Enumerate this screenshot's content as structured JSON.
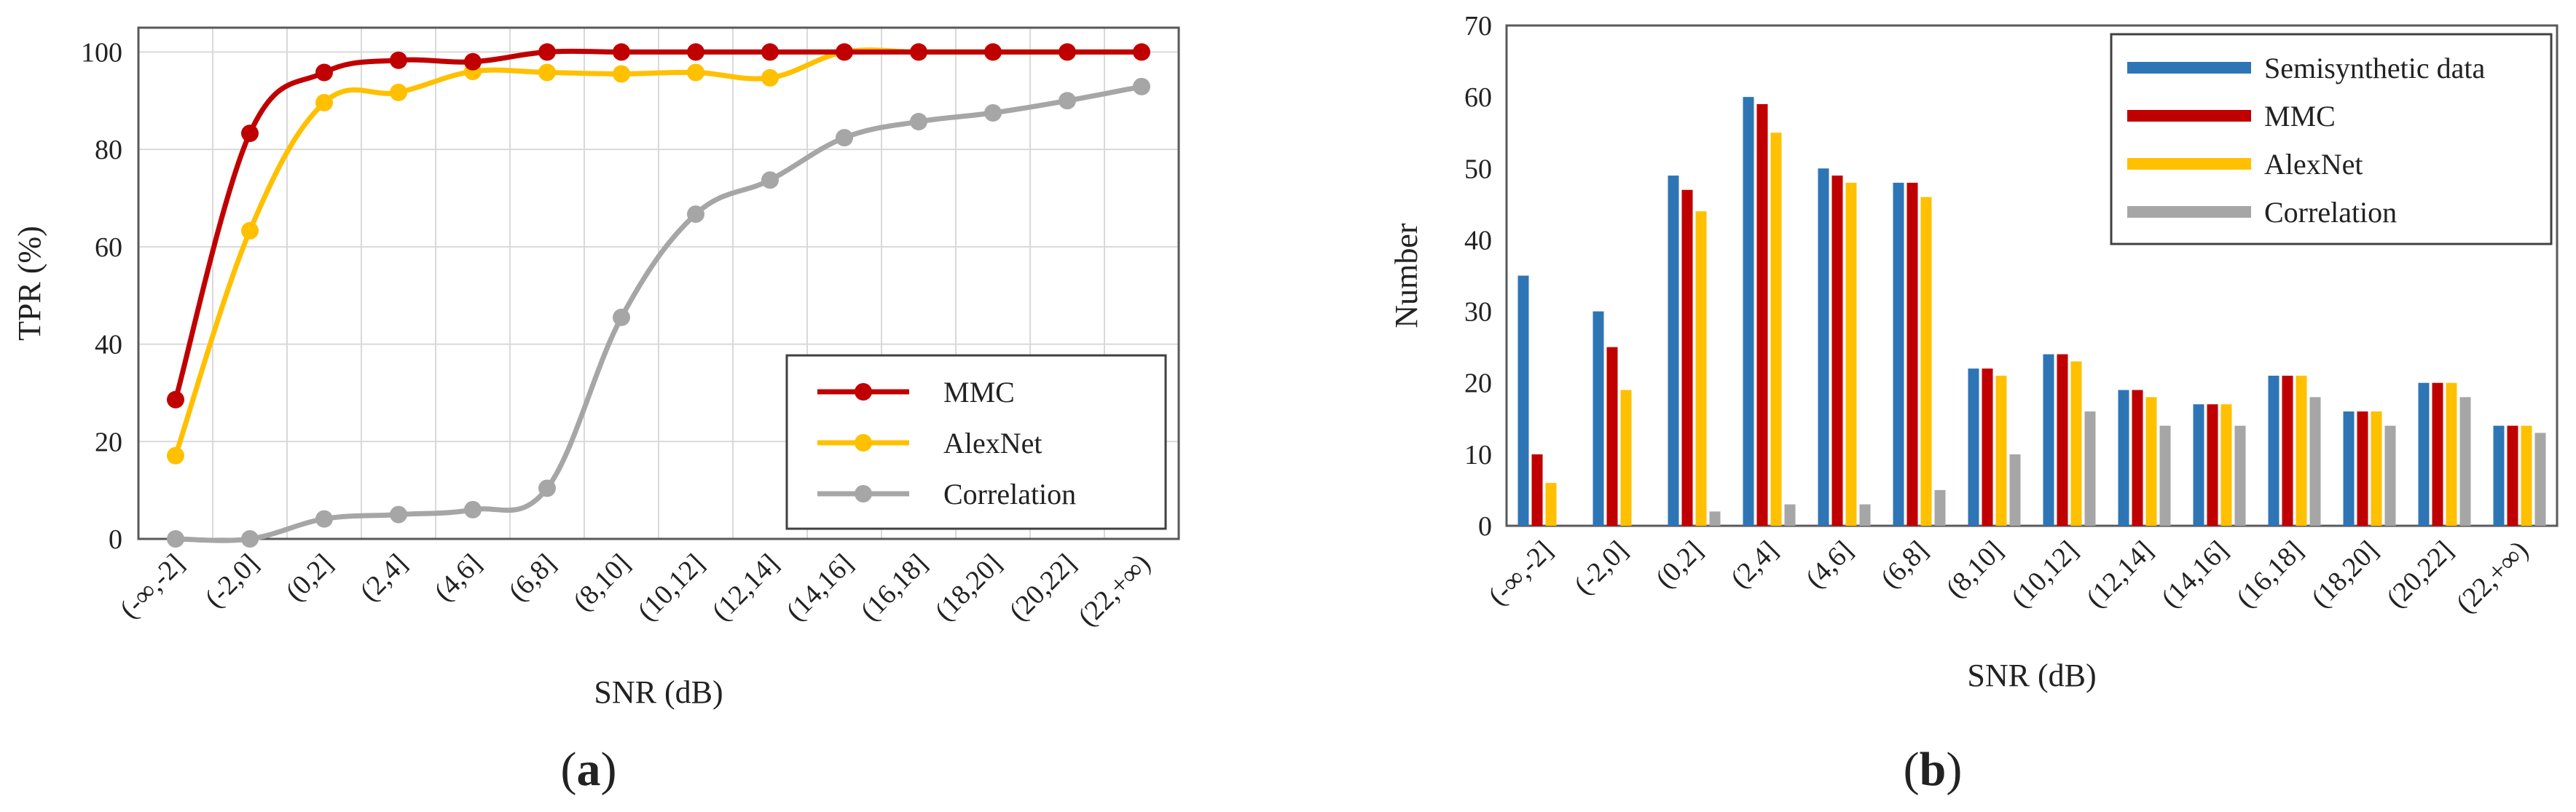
{
  "chart_data": [
    {
      "type": "line",
      "panel_label": "(a)",
      "panel_letter": "a",
      "categories": [
        "(-∞,-2]",
        "(-2,0]",
        "(0,2]",
        "(2,4]",
        "(4,6]",
        "(6,8]",
        "(8,10]",
        "(10,12]",
        "(12,14]",
        "(14,16]",
        "(16,18]",
        "(18,20]",
        "(20,22]",
        "(22,+∞)"
      ],
      "series": [
        {
          "name": "MMC",
          "color": "#c00000",
          "values": [
            28.6,
            83.3,
            95.8,
            98.3,
            98.0,
            100,
            100,
            100,
            100,
            100,
            100,
            100,
            100,
            100
          ]
        },
        {
          "name": "AlexNet",
          "color": "#ffc000",
          "values": [
            17.1,
            63.3,
            89.6,
            91.7,
            96.0,
            95.8,
            95.5,
            95.8,
            94.7,
            100,
            100,
            100,
            100,
            100
          ]
        },
        {
          "name": "Correlation",
          "color": "#a6a6a6",
          "values": [
            0,
            0,
            4.1,
            5.0,
            6.0,
            10.4,
            45.5,
            66.7,
            73.7,
            82.4,
            85.7,
            87.5,
            90.0,
            92.9
          ]
        }
      ],
      "xlabel": "SNR (dB)",
      "ylabel": "TPR (%)",
      "ylim": [
        0,
        105
      ],
      "yticks": [
        0,
        20,
        40,
        60,
        80,
        100
      ],
      "grid": true,
      "legend_position": "bottom-right"
    },
    {
      "type": "bar",
      "panel_label": "(b)",
      "panel_letter": "b",
      "categories": [
        "(-∞,-2]",
        "(-2,0]",
        "(0,2]",
        "(2,4]",
        "(4,6]",
        "(6,8]",
        "(8,10]",
        "(10,12]",
        "(12,14]",
        "(14,16]",
        "(16,18]",
        "(18,20]",
        "(20,22]",
        "(22,+∞)"
      ],
      "series": [
        {
          "name": "Semisynthetic data",
          "color": "#2e75b6",
          "values": [
            35,
            30,
            49,
            60,
            50,
            48,
            22,
            24,
            19,
            17,
            21,
            16,
            20,
            14
          ]
        },
        {
          "name": "MMC",
          "color": "#c00000",
          "values": [
            10,
            25,
            47,
            59,
            49,
            48,
            22,
            24,
            19,
            17,
            21,
            16,
            20,
            14
          ]
        },
        {
          "name": "AlexNet",
          "color": "#ffc000",
          "values": [
            6,
            19,
            44,
            55,
            48,
            46,
            21,
            23,
            18,
            17,
            21,
            16,
            20,
            14
          ]
        },
        {
          "name": "Correlation",
          "color": "#a6a6a6",
          "values": [
            0,
            0,
            2,
            3,
            3,
            5,
            10,
            16,
            14,
            14,
            18,
            14,
            18,
            13
          ]
        }
      ],
      "xlabel": "SNR (dB)",
      "ylabel": "Number",
      "ylim": [
        0,
        70
      ],
      "yticks": [
        0,
        10,
        20,
        30,
        40,
        50,
        60,
        70
      ],
      "grid": false,
      "legend_position": "top-right"
    }
  ]
}
